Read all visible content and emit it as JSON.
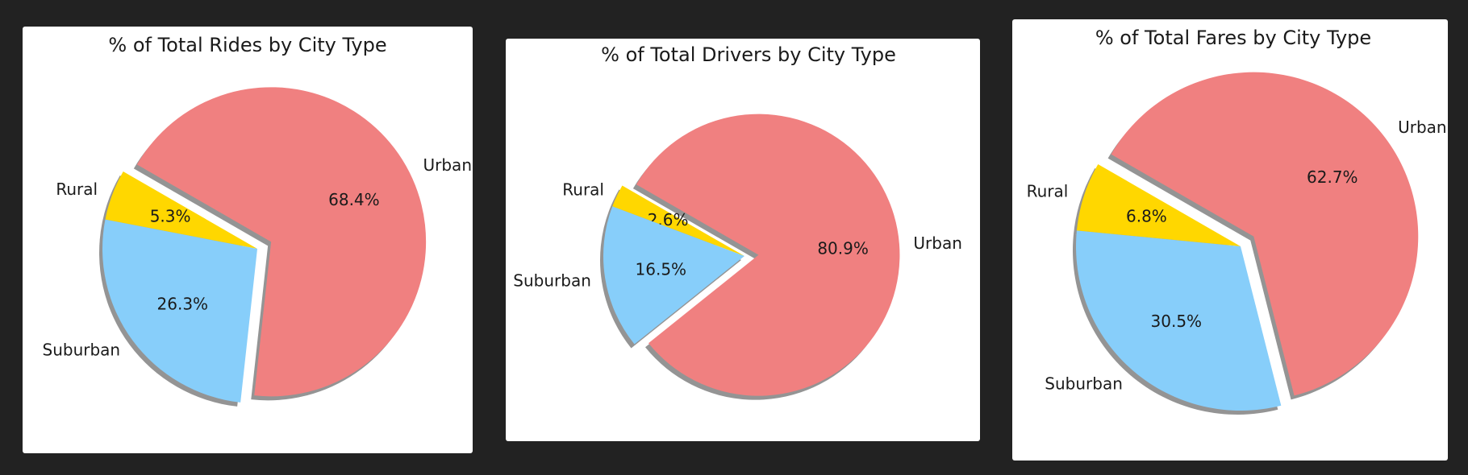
{
  "chart_data": [
    {
      "type": "pie",
      "title": "% of Total Rides by City Type",
      "categories": [
        "Rural",
        "Suburban",
        "Urban"
      ],
      "values": [
        5.3,
        26.3,
        68.4
      ],
      "value_labels": [
        "5.3%",
        "26.3%",
        "68.4%"
      ],
      "colors": [
        "#ffd700",
        "#87cefa",
        "#f08080"
      ],
      "explode": [
        0,
        0,
        0.1
      ],
      "start_angle": 150,
      "shadow": true
    },
    {
      "type": "pie",
      "title": "% of Total Drivers by City Type",
      "categories": [
        "Rural",
        "Suburban",
        "Urban"
      ],
      "values": [
        2.6,
        16.5,
        80.9
      ],
      "value_labels": [
        "2.6%",
        "16.5%",
        "80.9%"
      ],
      "colors": [
        "#ffd700",
        "#87cefa",
        "#f08080"
      ],
      "explode": [
        0,
        0,
        0.1
      ],
      "start_angle": 150,
      "shadow": true
    },
    {
      "type": "pie",
      "title": "% of Total Fares by City Type",
      "categories": [
        "Rural",
        "Suburban",
        "Urban"
      ],
      "values": [
        6.8,
        30.5,
        62.7
      ],
      "value_labels": [
        "6.8%",
        "30.5%",
        "62.7%"
      ],
      "colors": [
        "#ffd700",
        "#87cefa",
        "#f08080"
      ],
      "explode": [
        0,
        0,
        0.1
      ],
      "start_angle": 150,
      "shadow": true
    }
  ]
}
